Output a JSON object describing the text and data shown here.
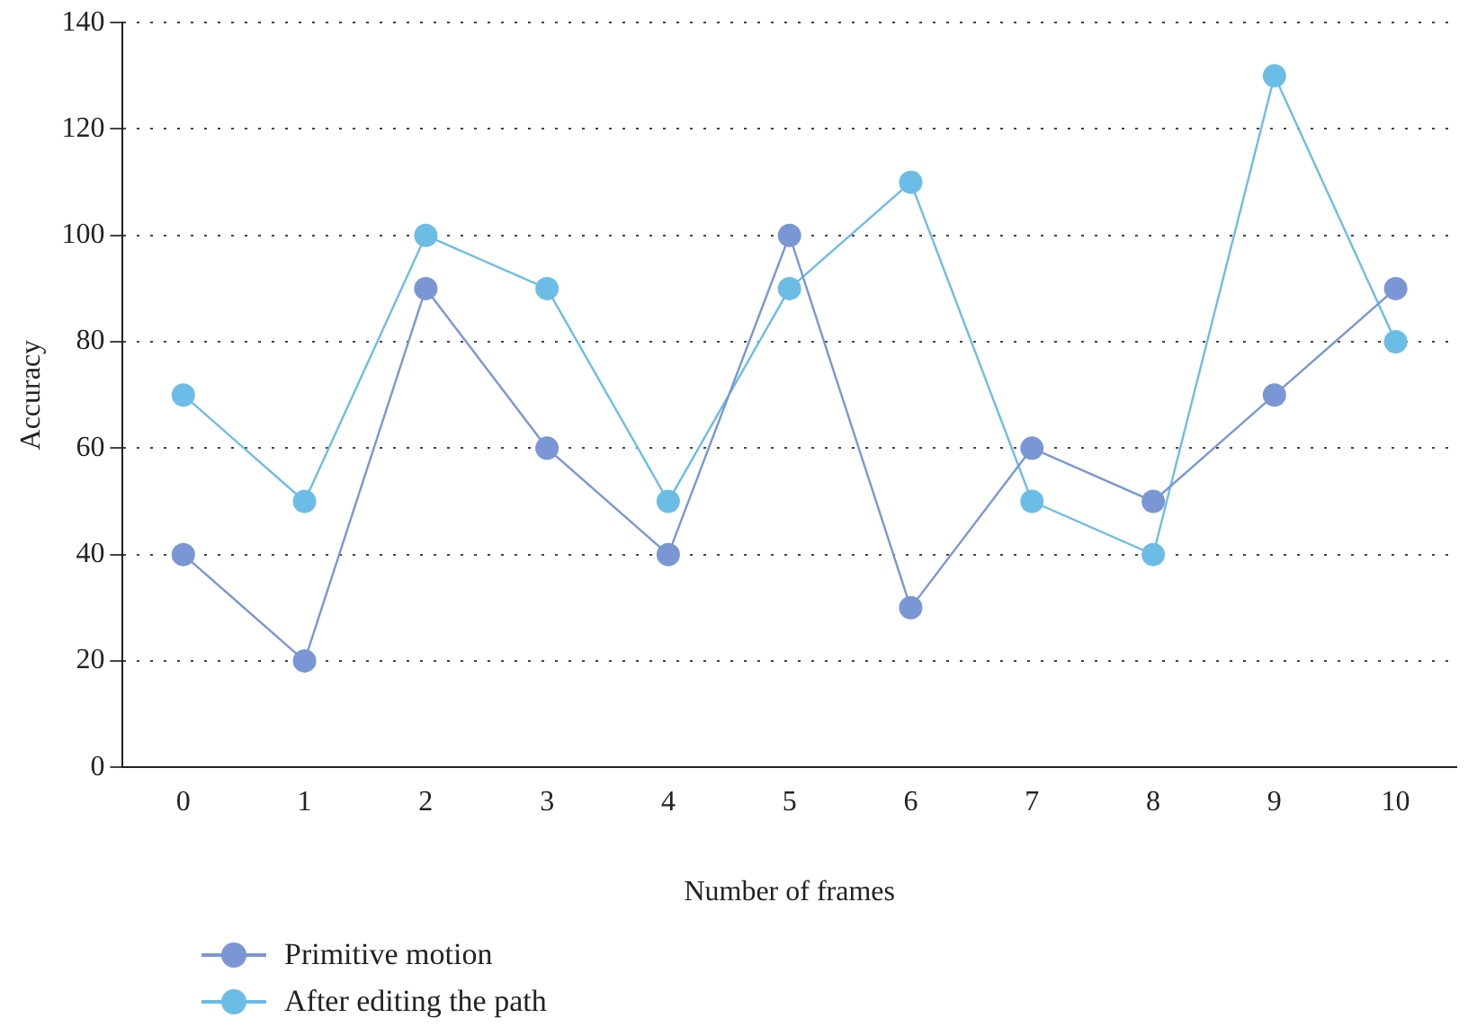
{
  "chart_data": {
    "type": "line",
    "xlabel": "Number of frames",
    "ylabel": "Accuracy",
    "categories": [
      "0",
      "1",
      "2",
      "3",
      "4",
      "5",
      "6",
      "7",
      "8",
      "9",
      "10"
    ],
    "series": [
      {
        "name": "Primitive motion",
        "color": "#7b96d4",
        "values": [
          40,
          20,
          90,
          60,
          40,
          100,
          30,
          60,
          50,
          70,
          90
        ]
      },
      {
        "name": "After editing the path",
        "color": "#6cbde6",
        "values": [
          70,
          50,
          100,
          90,
          50,
          90,
          110,
          50,
          40,
          130,
          80
        ]
      }
    ],
    "ylim": [
      0,
      140
    ],
    "yticks": [
      0,
      20,
      40,
      60,
      80,
      100,
      120,
      140
    ],
    "grid": "y",
    "legend": "bottom left",
    "marker": "circle",
    "line_style": "solid"
  }
}
